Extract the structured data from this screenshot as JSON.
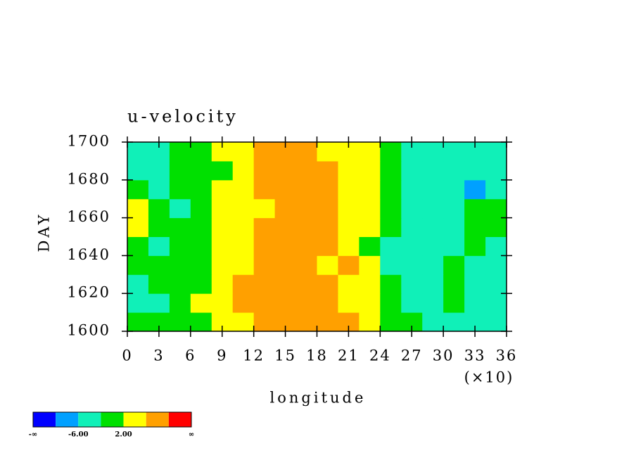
{
  "chart_data": {
    "type": "heatmap",
    "title": "u-velocity",
    "xlabel": "longitude",
    "ylabel": "DAY",
    "x_multiplier": "(×10)",
    "x": [
      1,
      3,
      5,
      7,
      9,
      11,
      13,
      15,
      17,
      19,
      21,
      23,
      25,
      27,
      29,
      31,
      33,
      35
    ],
    "y": [
      1605,
      1615,
      1625,
      1635,
      1645,
      1655,
      1665,
      1675,
      1685,
      1695
    ],
    "z": [
      [
        -2,
        -1,
        0,
        1,
        3,
        5,
        7,
        8,
        9,
        9,
        8,
        4,
        0,
        -2,
        -3,
        -4,
        -3,
        -3
      ],
      [
        -6,
        -3,
        0,
        2,
        4,
        6,
        8,
        7,
        8,
        6,
        5,
        2,
        -2,
        -3,
        -3,
        -2,
        -4,
        -5
      ],
      [
        -3,
        -1,
        1,
        0,
        2,
        6,
        8,
        9,
        7,
        6,
        4,
        2,
        -1,
        -4,
        -3,
        -2,
        -3,
        -4
      ],
      [
        -1,
        1,
        0,
        -1,
        2,
        5,
        6,
        8,
        7,
        5,
        6,
        2,
        -3,
        -4,
        -3,
        -2,
        -3,
        -3
      ],
      [
        -2,
        -3,
        0,
        1,
        3,
        5,
        6,
        7,
        6,
        7,
        5,
        1,
        -3,
        -4,
        -3,
        -3,
        -2,
        -3
      ],
      [
        2,
        -1,
        -2,
        1,
        3,
        4,
        6,
        7,
        8,
        6,
        5,
        2,
        -2,
        -4,
        -5,
        -3,
        -2,
        1
      ],
      [
        4,
        0,
        -3,
        0,
        2,
        5,
        5,
        6,
        7,
        6,
        5,
        3,
        -1,
        -4,
        -3,
        -3,
        -2,
        0
      ],
      [
        -2,
        -4,
        -1,
        0,
        2,
        4,
        7,
        9,
        7,
        6,
        5,
        3,
        -2,
        -4,
        -5,
        -6,
        -7,
        -4
      ],
      [
        -3,
        -5,
        -2,
        0,
        1,
        4,
        6,
        8,
        9,
        6,
        5,
        4,
        0,
        -3,
        -4,
        -5,
        -6,
        -6
      ],
      [
        -4,
        -6,
        -1,
        0,
        2,
        5,
        6,
        9,
        7,
        5,
        5,
        3,
        0,
        -3,
        -4,
        -4,
        -5,
        -6
      ]
    ],
    "levels": [
      -10,
      -6,
      -2,
      2,
      6,
      10
    ],
    "colors": [
      "#0000ff",
      "#00a0ff",
      "#10f0b8",
      "#00e000",
      "#ffff00",
      "#ffa000",
      "#ff0000"
    ],
    "colorbar_ticks": [
      {
        "value": -6,
        "label": "-6.00"
      },
      {
        "value": 2,
        "label": "2.00"
      }
    ],
    "colorbar_ends": [
      "-∞",
      "∞"
    ],
    "xlim": [
      0,
      36
    ],
    "xticks": [
      0,
      3,
      6,
      9,
      12,
      15,
      18,
      21,
      24,
      27,
      30,
      33,
      36
    ],
    "ylim": [
      1600,
      1700
    ],
    "yticks": [
      1600,
      1620,
      1640,
      1660,
      1680,
      1700
    ]
  }
}
